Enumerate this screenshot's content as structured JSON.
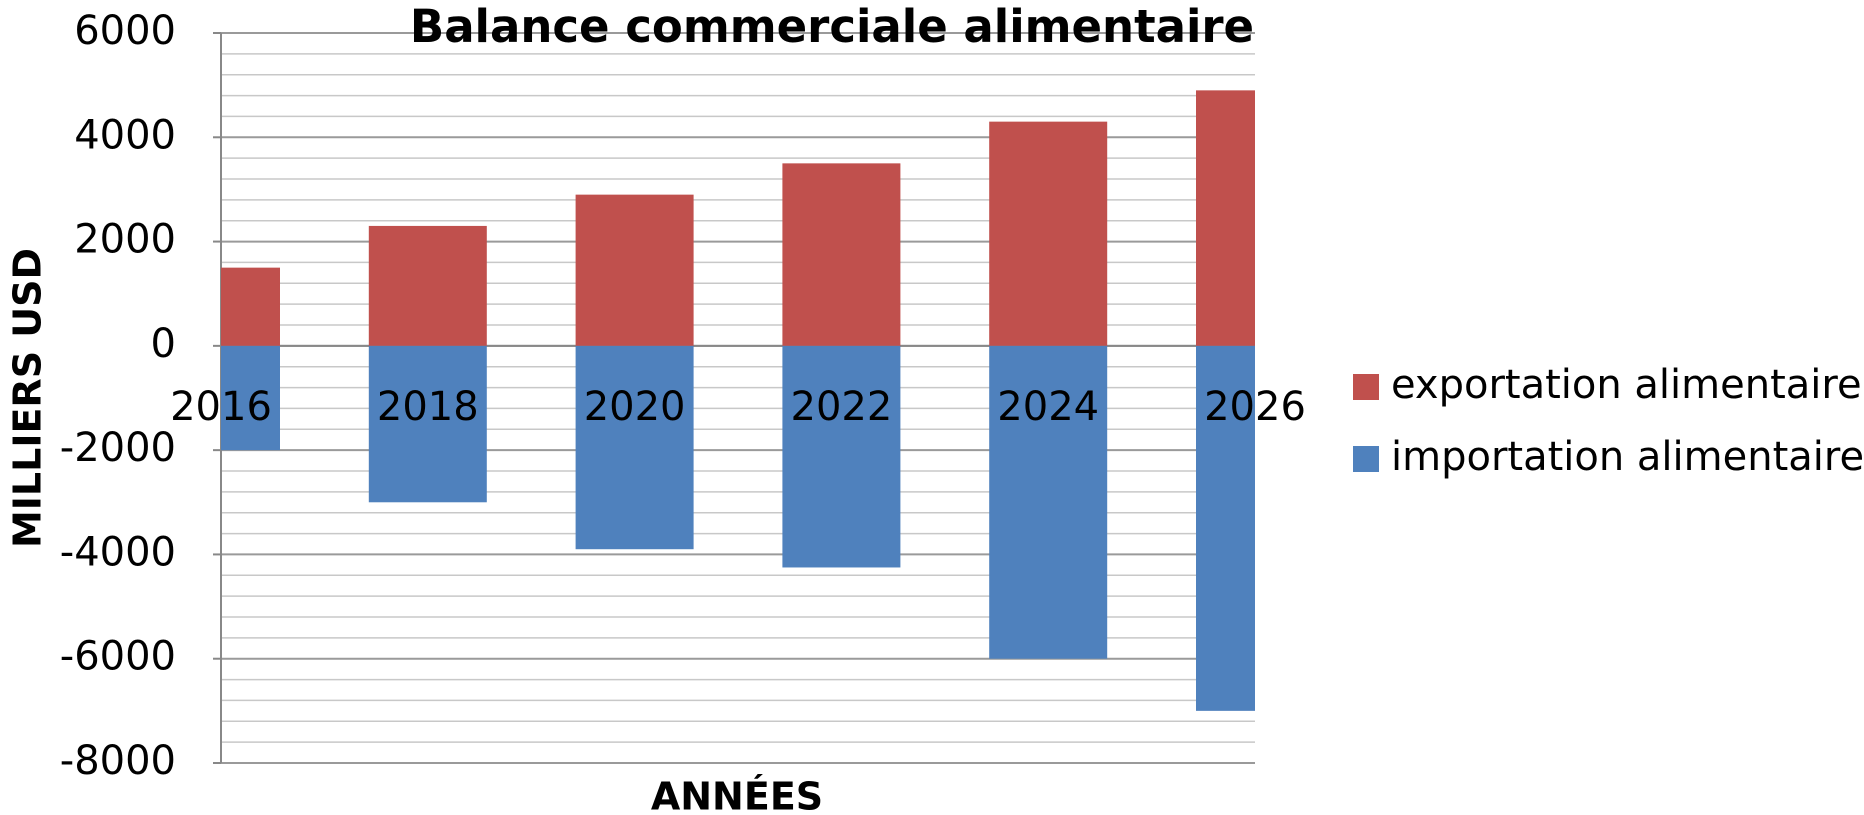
{
  "chart_data": {
    "type": "bar",
    "title": "Balance commerciale alimentaire",
    "x_label": "ANNÉES",
    "y_label": "MILLIERS USD",
    "x": [
      2016,
      2018,
      2020,
      2022,
      2024,
      2026
    ],
    "xlim": [
      2016,
      2026
    ],
    "xticks": [
      2016,
      2018,
      2020,
      2022,
      2024,
      2026
    ],
    "ylim": [
      -8000,
      6000
    ],
    "yticks": [
      -8000,
      -6000,
      -4000,
      -2000,
      0,
      2000,
      4000,
      6000
    ],
    "grid": true,
    "legend": "right",
    "series": [
      {
        "name": "exportation alimentaire",
        "color": "#c0504d",
        "values": [
          1500,
          2300,
          2900,
          3500,
          4300,
          4900
        ]
      },
      {
        "name": "importation alimentaire",
        "color": "#4f81bd",
        "values": [
          -2000,
          -3000,
          -3900,
          -4250,
          -6000,
          -7000
        ]
      }
    ]
  }
}
